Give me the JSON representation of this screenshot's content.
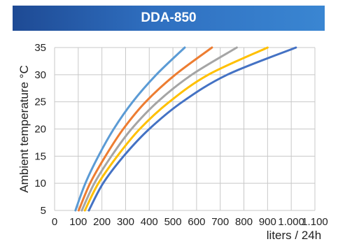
{
  "header": {
    "title": "DDA-850"
  },
  "chart_data": {
    "type": "line",
    "title": "DDA-850",
    "xlabel": "liters / 24h",
    "ylabel": "Ambient temperature °C",
    "xlim": [
      0,
      1100
    ],
    "ylim": [
      5,
      35
    ],
    "x_ticks": [
      0,
      100,
      200,
      300,
      400,
      500,
      600,
      700,
      800,
      900,
      1000,
      1100
    ],
    "x_tick_labels": [
      "0",
      "100",
      "200",
      "300",
      "400",
      "500",
      "600",
      "700",
      "800",
      "900",
      "1.000",
      "1.100"
    ],
    "y_ticks": [
      5,
      10,
      15,
      20,
      25,
      30,
      35
    ],
    "y_tick_labels": [
      "5",
      "10",
      "15",
      "20",
      "25",
      "30",
      "35"
    ],
    "grid": true,
    "legend": "none",
    "series": [
      {
        "color": "#5b9bd5",
        "points": [
          [
            88,
            5
          ],
          [
            130,
            10
          ],
          [
            185,
            15
          ],
          [
            250,
            20
          ],
          [
            330,
            25
          ],
          [
            430,
            30
          ],
          [
            550,
            35
          ]
        ]
      },
      {
        "color": "#ed7d31",
        "points": [
          [
            102,
            5
          ],
          [
            150,
            10
          ],
          [
            215,
            15
          ],
          [
            290,
            20
          ],
          [
            385,
            25
          ],
          [
            510,
            30
          ],
          [
            665,
            35
          ]
        ]
      },
      {
        "color": "#a5a5a5",
        "points": [
          [
            115,
            5
          ],
          [
            168,
            10
          ],
          [
            240,
            15
          ],
          [
            325,
            20
          ],
          [
            435,
            25
          ],
          [
            580,
            30
          ],
          [
            770,
            35
          ]
        ]
      },
      {
        "color": "#ffc000",
        "points": [
          [
            128,
            5
          ],
          [
            185,
            10
          ],
          [
            265,
            15
          ],
          [
            360,
            20
          ],
          [
            485,
            25
          ],
          [
            650,
            30
          ],
          [
            900,
            35
          ]
        ]
      },
      {
        "color": "#4472c4",
        "points": [
          [
            145,
            5
          ],
          [
            205,
            10
          ],
          [
            292,
            15
          ],
          [
            400,
            20
          ],
          [
            540,
            25
          ],
          [
            730,
            30
          ],
          [
            1020,
            35
          ]
        ]
      }
    ]
  }
}
